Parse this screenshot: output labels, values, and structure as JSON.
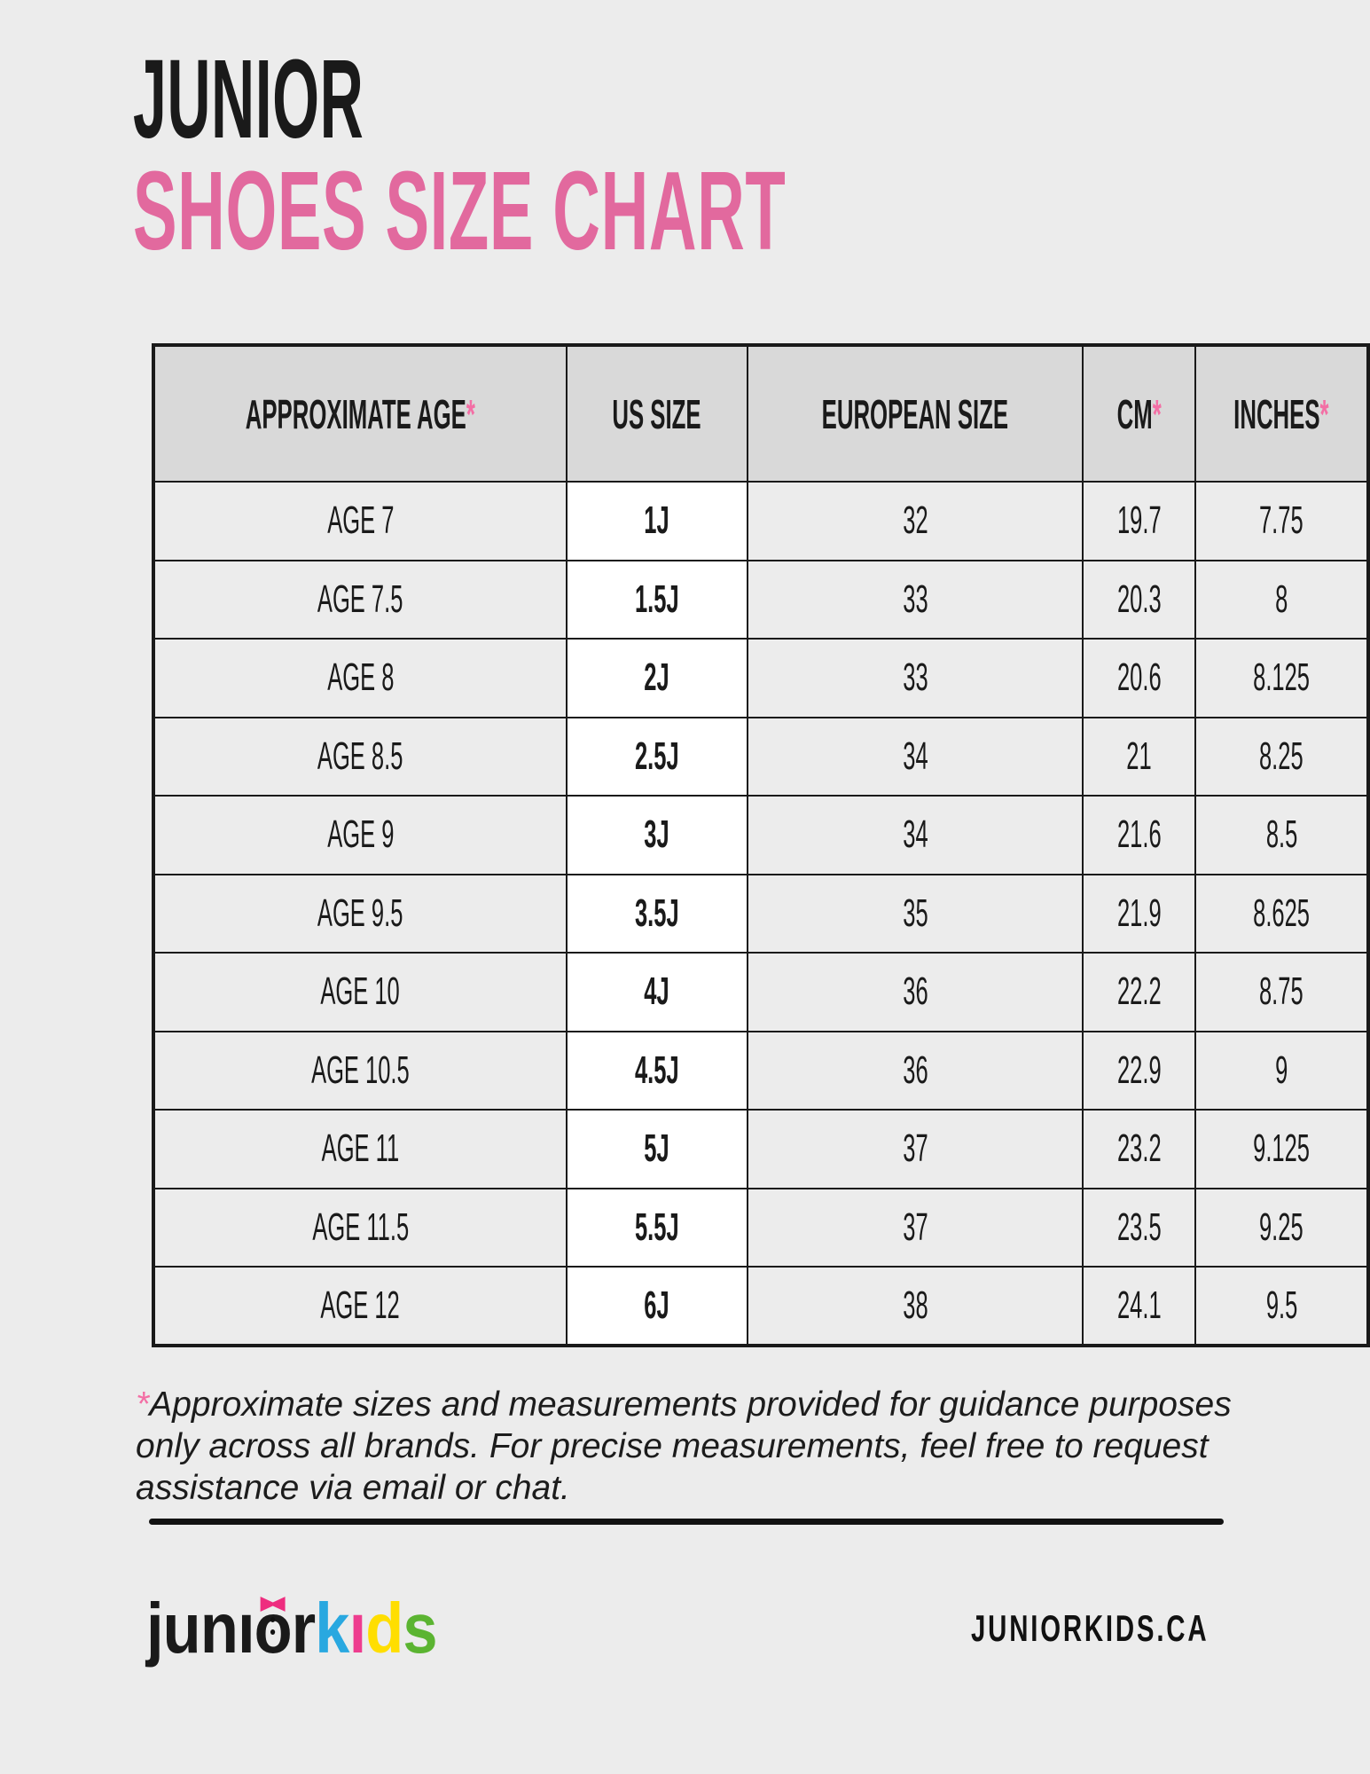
{
  "title": {
    "line1": "JUNIOR",
    "line2": "SHOES SIZE CHART"
  },
  "chart_data": {
    "type": "table",
    "title": "JUNIOR SHOES SIZE CHART",
    "columns": [
      {
        "label": "APPROXIMATE AGE",
        "asterisk": "*"
      },
      {
        "label": "US SIZE",
        "asterisk": ""
      },
      {
        "label": "EUROPEAN SIZE",
        "asterisk": ""
      },
      {
        "label": "CM",
        "asterisk": "*"
      },
      {
        "label": "INCHES",
        "asterisk": "*"
      }
    ],
    "rows": [
      {
        "age": "AGE 7",
        "us": "1J",
        "eu": "32",
        "cm": "19.7",
        "inches": "7.75"
      },
      {
        "age": "AGE 7.5",
        "us": "1.5J",
        "eu": "33",
        "cm": "20.3",
        "inches": "8"
      },
      {
        "age": "AGE 8",
        "us": "2J",
        "eu": "33",
        "cm": "20.6",
        "inches": "8.125"
      },
      {
        "age": "AGE 8.5",
        "us": "2.5J",
        "eu": "34",
        "cm": "21",
        "inches": "8.25"
      },
      {
        "age": "AGE 9",
        "us": "3J",
        "eu": "34",
        "cm": "21.6",
        "inches": "8.5"
      },
      {
        "age": "AGE 9.5",
        "us": "3.5J",
        "eu": "35",
        "cm": "21.9",
        "inches": "8.625"
      },
      {
        "age": "AGE 10",
        "us": "4J",
        "eu": "36",
        "cm": "22.2",
        "inches": "8.75"
      },
      {
        "age": "AGE 10.5",
        "us": "4.5J",
        "eu": "36",
        "cm": "22.9",
        "inches": "9"
      },
      {
        "age": "AGE 11",
        "us": "5J",
        "eu": "37",
        "cm": "23.2",
        "inches": "9.125"
      },
      {
        "age": "AGE 11.5",
        "us": "5.5J",
        "eu": "37",
        "cm": "23.5",
        "inches": "9.25"
      },
      {
        "age": "AGE 12",
        "us": "6J",
        "eu": "38",
        "cm": "24.1",
        "inches": "9.5"
      }
    ]
  },
  "footnote": {
    "asterisk": "*",
    "lines": [
      "Approximate sizes and measurements provided for guidance purposes",
      "only across all brands. For precise measurements, feel free to request",
      "assistance via email or chat."
    ]
  },
  "footer": {
    "logo_black": [
      {
        "char": "j",
        "color": "#1A1A1A"
      },
      {
        "char": "u",
        "color": "#1A1A1A"
      },
      {
        "char": "n",
        "color": "#1A1A1A"
      },
      {
        "char": "ı",
        "color": "#1A1A1A"
      },
      {
        "char": "o",
        "color": "#1A1A1A"
      },
      {
        "char": "r",
        "color": "#1A1A1A"
      }
    ],
    "logo_color": [
      {
        "char": "k",
        "color": "#29A8E0"
      },
      {
        "char": "ı",
        "color": "#EE3D8F"
      },
      {
        "char": "d",
        "color": "#FFDE00"
      },
      {
        "char": "s",
        "color": "#5BB431"
      }
    ],
    "website": "JUNIORKIDS.CA"
  },
  "colors": {
    "background": "#ECECEC",
    "header_cell": "#D9D9D9",
    "us_cell": "#FFFFFF",
    "title_pink": "#E2699E",
    "asterisk_pink": "#F36FA5",
    "bow_pink": "#EE2D7F",
    "border_black": "#1A1A1A"
  }
}
